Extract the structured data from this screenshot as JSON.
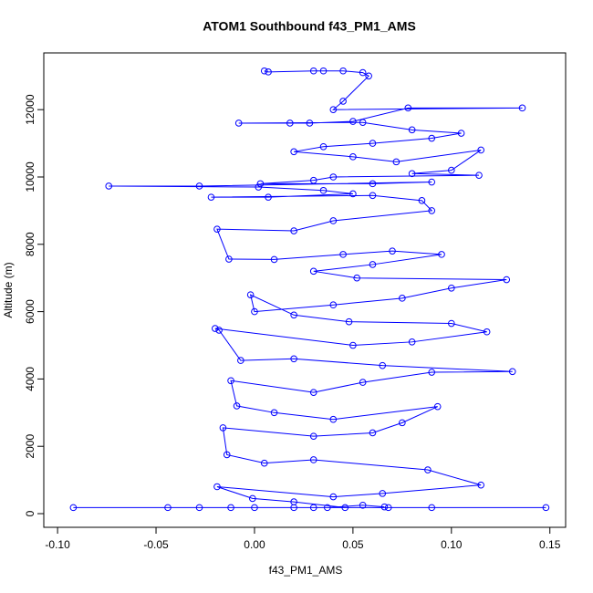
{
  "chart_data": {
    "type": "line",
    "markers": true,
    "color": "#0000ff",
    "title": "ATOM1 Southbound f43_PM1_AMS",
    "x_label": "f43_PM1_AMS",
    "y_label": "Altitude (m)",
    "xlim": [
      -0.107,
      0.158
    ],
    "ylim": [
      -406,
      13685
    ],
    "xticks": [
      {
        "value": -0.1,
        "label": "-0.10"
      },
      -0.05,
      {
        "value": 0,
        "label": "0.00"
      },
      0.05,
      {
        "value": 0.1,
        "label": "0.10"
      },
      0.15
    ],
    "yticks": [
      0,
      2000,
      4000,
      6000,
      8000,
      10000,
      12000
    ],
    "x": [
      0.005,
      0.007,
      0.03,
      0.035,
      0.045,
      0.055,
      0.058,
      0.045,
      0.04,
      0.136,
      0.078,
      0.05,
      0.028,
      0.018,
      -0.008,
      0.055,
      0.08,
      0.105,
      0.09,
      0.06,
      0.035,
      0.02,
      0.05,
      0.072,
      0.115,
      0.1,
      0.08,
      0.114,
      0.04,
      0.03,
      0.003,
      0.06,
      0.09,
      -0.028,
      -0.074,
      0.002,
      0.035,
      0.05,
      0.007,
      -0.022,
      0.06,
      0.085,
      0.09,
      0.04,
      0.02,
      -0.019,
      -0.013,
      0.01,
      0.045,
      0.07,
      0.095,
      0.06,
      0.03,
      0.052,
      0.128,
      0.1,
      0.075,
      0.04,
      0.0,
      -0.002,
      0.02,
      0.048,
      0.1,
      0.118,
      0.08,
      0.05,
      -0.02,
      -0.018,
      -0.007,
      0.02,
      0.065,
      0.131,
      0.09,
      0.055,
      0.03,
      -0.012,
      -0.009,
      0.01,
      0.04,
      0.093,
      0.075,
      0.06,
      0.03,
      -0.016,
      -0.014,
      0.005,
      0.03,
      0.088,
      0.115,
      0.065,
      0.04,
      -0.019,
      -0.001,
      0.02,
      0.046,
      0.148,
      0.09,
      0.068,
      0.03,
      -0.044,
      -0.092,
      -0.028,
      -0.012,
      0.0,
      0.02,
      0.037,
      0.055,
      0.066
    ],
    "values": [
      13150,
      13120,
      13150,
      13150,
      13150,
      13100,
      13000,
      12250,
      12000,
      12050,
      12050,
      11650,
      11600,
      11600,
      11600,
      11620,
      11400,
      11300,
      11150,
      11000,
      10900,
      10750,
      10600,
      10450,
      10800,
      10200,
      10100,
      10050,
      10000,
      9900,
      9800,
      9800,
      9850,
      9730,
      9730,
      9700,
      9600,
      9500,
      9400,
      9400,
      9450,
      9300,
      9000,
      8700,
      8400,
      8450,
      7560,
      7550,
      7700,
      7800,
      7700,
      7400,
      7200,
      7000,
      6950,
      6700,
      6400,
      6200,
      6000,
      6500,
      5900,
      5700,
      5650,
      5400,
      5100,
      5000,
      5500,
      5450,
      4550,
      4600,
      4400,
      4220,
      4200,
      3900,
      3600,
      3950,
      3200,
      3000,
      2800,
      3180,
      2700,
      2400,
      2300,
      2550,
      1750,
      1500,
      1600,
      1300,
      850,
      600,
      500,
      800,
      450,
      350,
      180,
      180,
      180,
      180,
      180,
      180,
      180,
      180,
      180,
      180,
      180,
      180,
      250,
      200
    ]
  }
}
